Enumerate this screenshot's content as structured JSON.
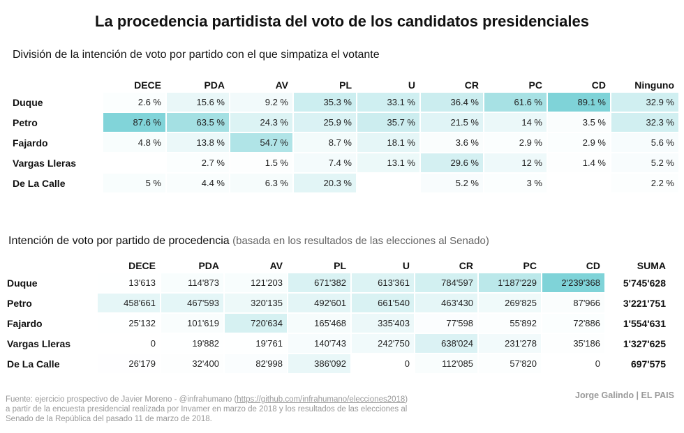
{
  "title": "La procedencia partidista del voto de los candidatos presidenciales",
  "section1": {
    "subtitle": "División de la intención de voto por partido con el que simpatiza el votante"
  },
  "section2": {
    "subtitle_main": "Intención de voto por partido de procedencia",
    "subtitle_note": "(basada en los resultados de las elecciones al Senado)"
  },
  "colors": {
    "scale_low": "#ffffff",
    "scale_high": "#7fd3d8"
  },
  "chart_data": [
    {
      "type": "table",
      "title": "División de la intención de voto por partido con el que simpatiza el votante",
      "columns": [
        "DECE",
        "PDA",
        "AV",
        "PL",
        "U",
        "CR",
        "PC",
        "CD",
        "Ninguno"
      ],
      "rows": [
        {
          "label": "Duque",
          "cells": [
            "2.6 %",
            "15.6 %",
            "9.2 %",
            "35.3 %",
            "33.1 %",
            "36.4 %",
            "61.6 %",
            "89.1 %",
            "32.9 %"
          ],
          "values": [
            2.6,
            15.6,
            9.2,
            35.3,
            33.1,
            36.4,
            61.6,
            89.1,
            32.9
          ]
        },
        {
          "label": "Petro",
          "cells": [
            "87.6 %",
            "63.5 %",
            "24.3 %",
            "25.9 %",
            "35.7 %",
            "21.5 %",
            "14 %",
            "3.5 %",
            "32.3 %"
          ],
          "values": [
            87.6,
            63.5,
            24.3,
            25.9,
            35.7,
            21.5,
            14,
            3.5,
            32.3
          ]
        },
        {
          "label": "Fajardo",
          "cells": [
            "4.8 %",
            "13.8 %",
            "54.7 %",
            "8.7 %",
            "18.1 %",
            "3.6 %",
            "2.9 %",
            "2.9 %",
            "5.6 %"
          ],
          "values": [
            4.8,
            13.8,
            54.7,
            8.7,
            18.1,
            3.6,
            2.9,
            2.9,
            5.6
          ]
        },
        {
          "label": "Vargas Lleras",
          "cells": [
            "",
            "2.7 %",
            "1.5 %",
            "7.4 %",
            "13.1 %",
            "29.6 %",
            "12 %",
            "1.4 %",
            "5.2 %"
          ],
          "values": [
            null,
            2.7,
            1.5,
            7.4,
            13.1,
            29.6,
            12,
            1.4,
            5.2
          ]
        },
        {
          "label": "De La Calle",
          "cells": [
            "5 %",
            "4.4 %",
            "6.3 %",
            "20.3 %",
            "",
            "5.2 %",
            "3 %",
            "",
            "2.2 %"
          ],
          "values": [
            5,
            4.4,
            6.3,
            20.3,
            null,
            5.2,
            3,
            null,
            2.2
          ]
        }
      ]
    },
    {
      "type": "table",
      "title": "Intención de voto por partido de procedencia",
      "columns": [
        "DECE",
        "PDA",
        "AV",
        "PL",
        "U",
        "CR",
        "PC",
        "CD",
        "SUMA"
      ],
      "rows": [
        {
          "label": "Duque",
          "cells": [
            "13'613",
            "114'873",
            "121'203",
            "671'382",
            "613'361",
            "784'597",
            "1'187'229",
            "2'239'368"
          ],
          "values": [
            13613,
            114873,
            121203,
            671382,
            613361,
            784597,
            1187229,
            2239368
          ],
          "total": "5'745'628"
        },
        {
          "label": "Petro",
          "cells": [
            "458'661",
            "467'593",
            "320'135",
            "492'601",
            "661'540",
            "463'430",
            "269'825",
            "87'966"
          ],
          "values": [
            458661,
            467593,
            320135,
            492601,
            661540,
            463430,
            269825,
            87966
          ],
          "total": "3'221'751"
        },
        {
          "label": "Fajardo",
          "cells": [
            "25'132",
            "101'619",
            "720'634",
            "165'468",
            "335'403",
            "77'598",
            "55'892",
            "72'886"
          ],
          "values": [
            25132,
            101619,
            720634,
            165468,
            335403,
            77598,
            55892,
            72886
          ],
          "total": "1'554'631"
        },
        {
          "label": "Vargas Lleras",
          "cells": [
            "0",
            "19'882",
            "19'761",
            "140'743",
            "242'750",
            "638'024",
            "231'278",
            "35'186"
          ],
          "values": [
            0,
            19882,
            19761,
            140743,
            242750,
            638024,
            231278,
            35186
          ],
          "total": "1'327'625"
        },
        {
          "label": "De La Calle",
          "cells": [
            "26'179",
            "32'400",
            "82'998",
            "386'092",
            "0",
            "112'085",
            "57'820",
            "0"
          ],
          "values": [
            26179,
            32400,
            82998,
            386092,
            0,
            112085,
            57820,
            0
          ],
          "total": "697'575"
        }
      ]
    }
  ],
  "footer": {
    "source_text_1": "Fuente: ejercicio prospectivo de Javier Moreno - @infrahumano (",
    "source_link": "https://github.com/infrahumano/elecciones2018",
    "source_text_2": ") a partir de la encuesta presidencial realizada por Invamer en marzo de 2018 y los resultados de las elecciones al Senado de la República del pasado 11 de marzo de 2018.",
    "credit": "Jorge Galindo | EL PAIS"
  }
}
